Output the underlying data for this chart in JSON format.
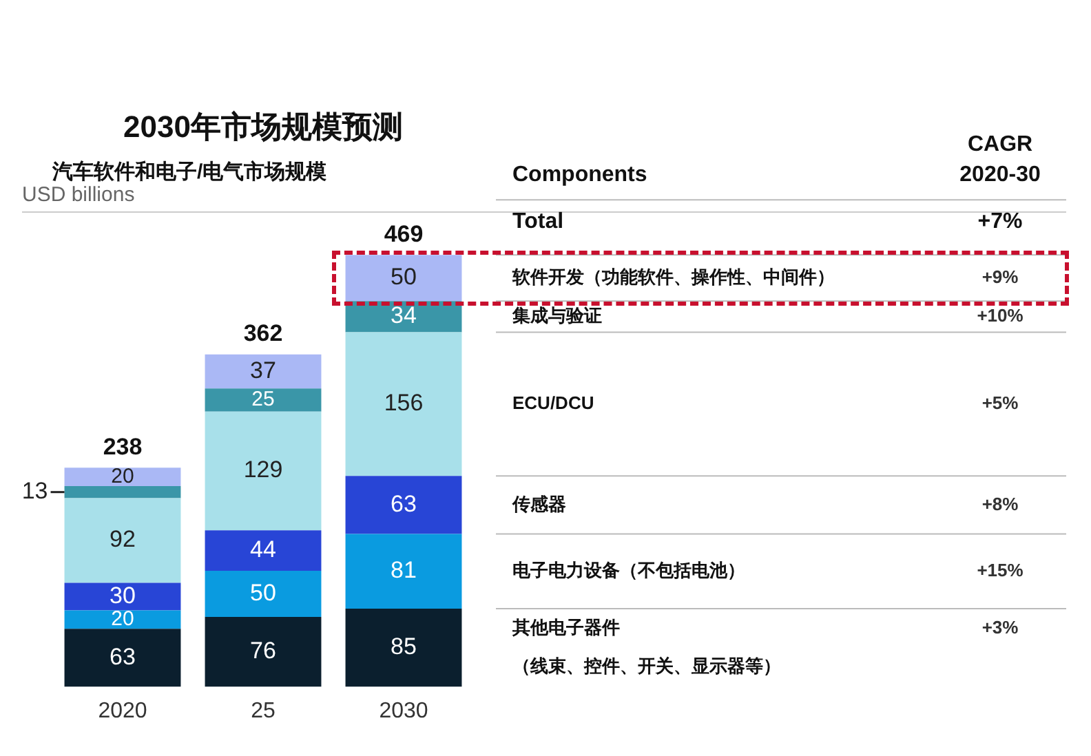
{
  "chart_data": {
    "type": "bar",
    "title": "2030年市场规模预测",
    "subtitle": "汽车软件和电子/电气市场规模",
    "ylabel": "USD billions",
    "categories": [
      "2020",
      "25",
      "2030"
    ],
    "stacked": true,
    "data_labels": true,
    "legend": false,
    "grid": false,
    "tick_labels": "x",
    "series": [
      {
        "name": "其他电子器件（线束、控件、开关、显示器等）",
        "color": "#0b1f2e",
        "values": [
          63,
          76,
          85
        ]
      },
      {
        "name": "电子电力设备（不包括电池）",
        "color": "#0a9be0",
        "values": [
          20,
          50,
          81
        ]
      },
      {
        "name": "传感器",
        "color": "#2845d6",
        "values": [
          30,
          44,
          63
        ]
      },
      {
        "name": "ECU/DCU",
        "color": "#a8e0ea",
        "values": [
          92,
          129,
          156
        ]
      },
      {
        "name": "集成与验证",
        "color": "#3a96a8",
        "values": [
          13,
          25,
          34
        ]
      },
      {
        "name": "软件开发（功能软件、操作性、中间件）",
        "color": "#aab8f5",
        "values": [
          20,
          37,
          50
        ]
      }
    ],
    "totals": [
      "238",
      "362",
      "469"
    ],
    "annotations": [
      "Components",
      "CAGR\n2020-30",
      "Total",
      "+7%",
      "+3%",
      "+15%",
      "+8%",
      "+5%",
      "+10%",
      "+9%"
    ]
  }
}
